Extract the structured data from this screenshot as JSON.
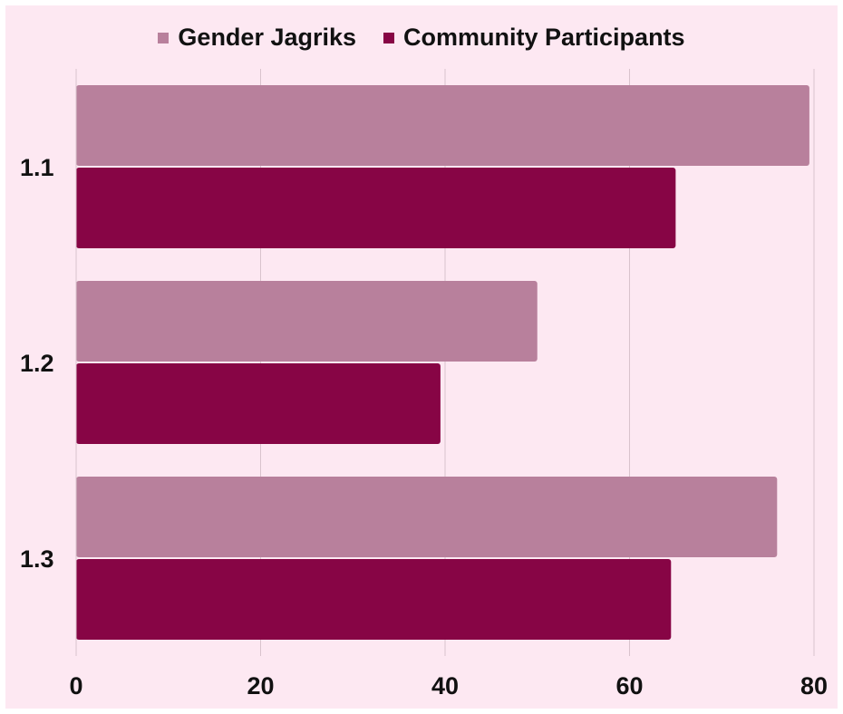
{
  "chart_data": {
    "type": "bar",
    "orientation": "horizontal",
    "categories": [
      "1.1",
      "1.2",
      "1.3"
    ],
    "series": [
      {
        "name": "Gender Jagriks",
        "values": [
          79.5,
          50,
          76
        ],
        "color": "#b8809c"
      },
      {
        "name": "Community Participants",
        "values": [
          65,
          39.5,
          64.5
        ],
        "color": "#870545"
      }
    ],
    "xlim": [
      0,
      80
    ],
    "x_ticks": [
      "0",
      "20",
      "40",
      "60",
      "80"
    ],
    "grid": true,
    "legend_position": "top"
  },
  "colors": {
    "background": "#fde8f2",
    "grid": "#d9c3cd"
  }
}
